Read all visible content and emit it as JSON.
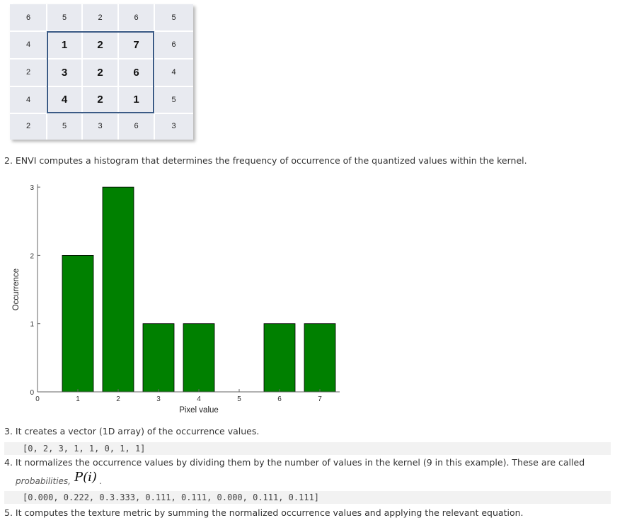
{
  "grid": {
    "rows": [
      [
        "6",
        "5",
        "2",
        "6",
        "5"
      ],
      [
        "4",
        "1",
        "2",
        "7",
        "6"
      ],
      [
        "2",
        "3",
        "2",
        "6",
        "4"
      ],
      [
        "4",
        "4",
        "2",
        "1",
        "5"
      ],
      [
        "2",
        "5",
        "3",
        "6",
        "3"
      ]
    ]
  },
  "steps": {
    "step2": "2. ENVI computes a histogram that determines the frequency of occurrence of the quantized values within the kernel.",
    "step3": "3. It creates a vector (1D array) of the occurrence values.",
    "step3_code": "[0, 2, 3, 1, 1, 0, 1, 1]",
    "step4": "4. It normalizes the occurrence values by dividing them by the number of values in the kernel (9 in this example). These are called",
    "step4_label": "probabilities,",
    "step4_symbol": "P(i)",
    "step4_end": ".",
    "step4_code": "[0.000, 0.222, 0.3.333, 0.111, 0.111, 0.000, 0.111, 0.111]",
    "step5": "5. It computes the texture metric by summing the normalized occurrence values and applying the relevant equation."
  },
  "chart_data": {
    "type": "bar",
    "categories": [
      1,
      2,
      3,
      4,
      5,
      6,
      7
    ],
    "values": [
      2,
      3,
      1,
      1,
      0,
      1,
      1
    ],
    "xticks": [
      "0",
      "1",
      "2",
      "3",
      "4",
      "5",
      "6",
      "7"
    ],
    "yticks": [
      "0",
      "1",
      "2",
      "3"
    ],
    "xlim": [
      0,
      7.5
    ],
    "ylim": [
      0,
      3
    ],
    "xlabel": "Pixel value",
    "ylabel": "Occurrence",
    "bar_color": "#008000",
    "grid": false
  }
}
